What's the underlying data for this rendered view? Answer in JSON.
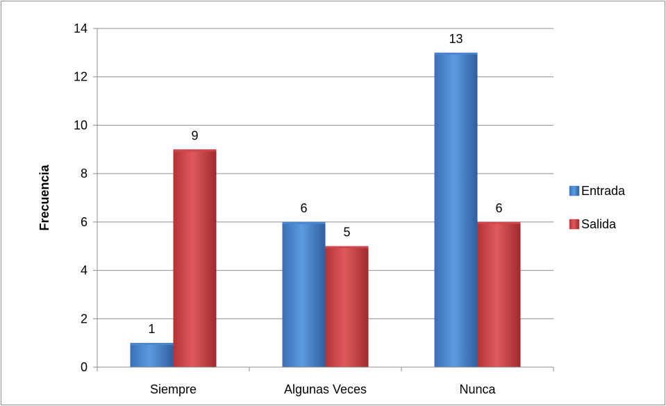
{
  "chart_data": {
    "type": "bar",
    "categories": [
      "Siempre",
      "Algunas Veces",
      "Nunca"
    ],
    "series": [
      {
        "name": "Entrada",
        "values": [
          1,
          6,
          13
        ],
        "color": "#4a86d0"
      },
      {
        "name": "Salida",
        "values": [
          9,
          5,
          6
        ],
        "color": "#d0474a"
      }
    ],
    "ylabel": "Frecuencia",
    "xlabel": "",
    "ylim": [
      0,
      14
    ],
    "yticks": [
      "0",
      "2",
      "4",
      "6",
      "8",
      "10",
      "12",
      "14"
    ],
    "grid": true,
    "legend": "right"
  }
}
